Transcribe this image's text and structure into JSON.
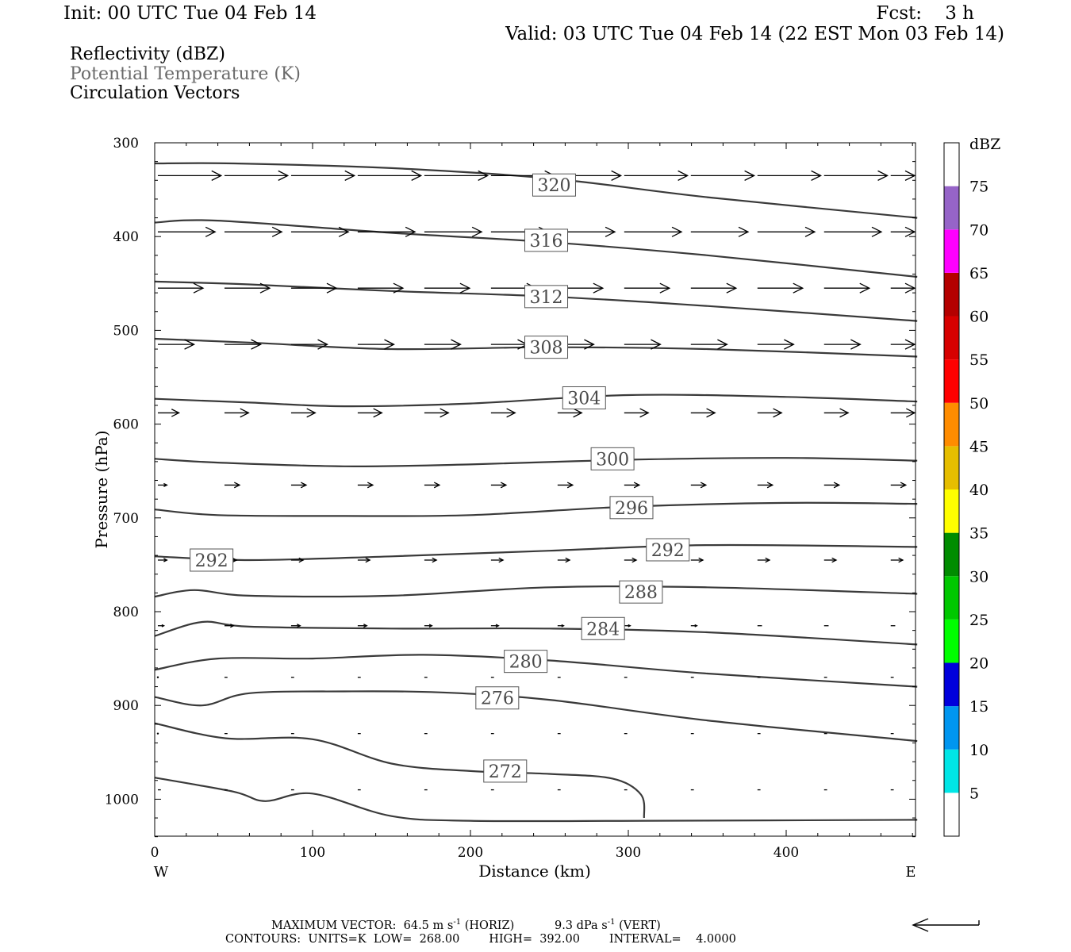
{
  "header": {
    "init": "Init: 00 UTC Tue 04 Feb 14",
    "fcst": "Fcst:    3 h",
    "valid": "Valid: 03 UTC Tue 04 Feb 14 (22 EST Mon 03 Feb 14)",
    "legend_lines": [
      "Reflectivity (dBZ)",
      "Potential Temperature (K)",
      "Circulation Vectors"
    ]
  },
  "colors": {
    "contour": "#3a3a3a",
    "potential_temperature_label": "#6a6a6a",
    "colorbar": [
      "#ffffff",
      "#00e6e6",
      "#0096f0",
      "#0000dc",
      "#00ff00",
      "#00c800",
      "#008c00",
      "#ffff00",
      "#e6be00",
      "#ff8c00",
      "#ff0000",
      "#d70000",
      "#b40000",
      "#ff00ff",
      "#9664c8",
      "#ffffff"
    ]
  },
  "footer": {
    "max_vector_label": "MAXIMUM VECTOR:",
    "max_vector_horiz": "64.5 m s",
    "horiz_tag": "(HORIZ)",
    "max_vector_vert": "9.3 dPa s",
    "vert_tag": "(VERT)",
    "exponent": "-1",
    "contours_line": "CONTOURS:  UNITS=K  LOW=  268.00        HIGH=  392.00        INTERVAL=    4.0000"
  },
  "chart_data": {
    "type": "line",
    "subtype": "vertical cross-section: potential temperature contours with circulation vectors",
    "xlabel": "Distance (km)",
    "ylabel": "Pressure (hPa)",
    "xlim": [
      0,
      483
    ],
    "ylim": [
      300,
      1040
    ],
    "y_inverted": true,
    "xticks": [
      0,
      100,
      200,
      300,
      400
    ],
    "yticks": [
      300,
      400,
      500,
      600,
      700,
      800,
      900,
      1000
    ],
    "x_end_labels": {
      "left": "W",
      "right": "E"
    },
    "grid": false,
    "colorbar": {
      "title": "dBZ",
      "tick_labels": [
        "5",
        "10",
        "15",
        "20",
        "25",
        "30",
        "35",
        "40",
        "45",
        "50",
        "55",
        "60",
        "65",
        "70",
        "75"
      ]
    },
    "contours": [
      {
        "label": "320",
        "label_at": [
          253,
          345
        ],
        "points": [
          [
            0,
            322
          ],
          [
            50,
            322
          ],
          [
            150,
            327
          ],
          [
            250,
            338
          ],
          [
            350,
            358
          ],
          [
            483,
            380
          ]
        ]
      },
      {
        "label": "316",
        "label_at": [
          248,
          404
        ],
        "points": [
          [
            0,
            385
          ],
          [
            40,
            383
          ],
          [
            150,
            396
          ],
          [
            250,
            406
          ],
          [
            350,
            420
          ],
          [
            483,
            443
          ]
        ]
      },
      {
        "label": "312",
        "label_at": [
          248,
          464
        ],
        "points": [
          [
            0,
            448
          ],
          [
            60,
            451
          ],
          [
            150,
            458
          ],
          [
            250,
            464
          ],
          [
            350,
            474
          ],
          [
            483,
            490
          ]
        ]
      },
      {
        "label": "308",
        "label_at": [
          248,
          518
        ],
        "points": [
          [
            0,
            509
          ],
          [
            60,
            513
          ],
          [
            150,
            520
          ],
          [
            250,
            518
          ],
          [
            350,
            520
          ],
          [
            483,
            528
          ]
        ]
      },
      {
        "label": "304",
        "label_at": [
          272,
          572
        ],
        "points": [
          [
            0,
            573
          ],
          [
            60,
            577
          ],
          [
            120,
            581
          ],
          [
            200,
            578
          ],
          [
            300,
            569
          ],
          [
            400,
            571
          ],
          [
            483,
            576
          ]
        ]
      },
      {
        "label": "300",
        "label_at": [
          290,
          637
        ],
        "points": [
          [
            0,
            637
          ],
          [
            40,
            641
          ],
          [
            120,
            645
          ],
          [
            200,
            643
          ],
          [
            300,
            638
          ],
          [
            400,
            636
          ],
          [
            483,
            639
          ]
        ]
      },
      {
        "label": "296",
        "label_at": [
          302,
          689
        ],
        "points": [
          [
            0,
            691
          ],
          [
            40,
            697
          ],
          [
            120,
            698
          ],
          [
            200,
            697
          ],
          [
            300,
            688
          ],
          [
            400,
            684
          ],
          [
            483,
            685
          ]
        ]
      },
      {
        "label": "292",
        "label_at": [
          36,
          745
        ],
        "points": [
          [
            0,
            741
          ],
          [
            60,
            745
          ],
          [
            150,
            741
          ],
          [
            250,
            735
          ],
          [
            350,
            729
          ],
          [
            483,
            731
          ]
        ]
      },
      {
        "label": "292",
        "label_at": [
          325,
          734
        ],
        "points": []
      },
      {
        "label": "288",
        "label_at": [
          308,
          779
        ],
        "points": [
          [
            0,
            784
          ],
          [
            25,
            777
          ],
          [
            60,
            783
          ],
          [
            150,
            783
          ],
          [
            250,
            774
          ],
          [
            350,
            774
          ],
          [
            483,
            781
          ]
        ]
      },
      {
        "label": "284",
        "label_at": [
          284,
          818
        ],
        "points": [
          [
            0,
            826
          ],
          [
            30,
            811
          ],
          [
            60,
            816
          ],
          [
            150,
            818
          ],
          [
            250,
            818
          ],
          [
            350,
            822
          ],
          [
            483,
            835
          ]
        ]
      },
      {
        "label": "280",
        "label_at": [
          235,
          853
        ],
        "points": [
          [
            0,
            862
          ],
          [
            40,
            850
          ],
          [
            100,
            850
          ],
          [
            170,
            846
          ],
          [
            250,
            852
          ],
          [
            350,
            866
          ],
          [
            483,
            880
          ]
        ]
      },
      {
        "label": "276",
        "label_at": [
          217,
          892
        ],
        "points": [
          [
            0,
            891
          ],
          [
            30,
            900
          ],
          [
            60,
            887
          ],
          [
            120,
            885
          ],
          [
            180,
            886
          ],
          [
            250,
            894
          ],
          [
            350,
            916
          ],
          [
            483,
            938
          ]
        ]
      },
      {
        "label": "272",
        "label_at": [
          222,
          970
        ],
        "points": [
          [
            0,
            919
          ],
          [
            45,
            935
          ],
          [
            100,
            936
          ],
          [
            150,
            962
          ],
          [
            200,
            970
          ],
          [
            250,
            973
          ],
          [
            290,
            978
          ],
          [
            308,
            995
          ],
          [
            310,
            1020
          ]
        ]
      },
      {
        "label": "",
        "label_at": null,
        "points": [
          [
            0,
            977
          ],
          [
            50,
            992
          ],
          [
            70,
            1002
          ],
          [
            100,
            994
          ],
          [
            150,
            1018
          ],
          [
            200,
            1023
          ],
          [
            310,
            1023
          ],
          [
            483,
            1022
          ]
        ]
      }
    ],
    "vector_rows": [
      {
        "p": 335,
        "u": [
          42,
          42,
          42,
          42,
          42,
          42,
          42,
          42,
          42,
          42,
          42,
          42,
          42,
          42
        ],
        "w": [
          0,
          0,
          0,
          0,
          0,
          0,
          0,
          0,
          0,
          0,
          0,
          0,
          0,
          0
        ]
      },
      {
        "p": 395,
        "u": [
          38,
          38,
          38,
          38,
          38,
          38,
          38,
          38,
          38,
          38,
          38,
          38,
          38,
          17
        ],
        "w": [
          0,
          0,
          0,
          0,
          0,
          0,
          0,
          0,
          0,
          0,
          0,
          0,
          0,
          0
        ]
      },
      {
        "p": 455,
        "u": [
          30,
          30,
          30,
          30,
          30,
          30,
          30,
          30,
          30,
          30,
          30,
          30,
          30,
          17
        ],
        "w": [
          0,
          0,
          0,
          0,
          0,
          0,
          0,
          0,
          0,
          0,
          0,
          0,
          0,
          0
        ]
      },
      {
        "p": 515,
        "u": [
          24,
          24,
          24,
          24,
          24,
          24,
          24,
          24,
          24,
          24,
          24,
          24,
          24,
          22
        ],
        "w": [
          0,
          0,
          0,
          0,
          0,
          0,
          0,
          0,
          0,
          0,
          0,
          0,
          0,
          0
        ]
      },
      {
        "p": 588,
        "u": [
          14,
          16,
          16,
          16,
          16,
          16,
          16,
          16,
          16,
          16,
          16,
          16,
          16,
          16
        ],
        "w": [
          0,
          0,
          0,
          0,
          0,
          0,
          0,
          0,
          0,
          0,
          0,
          0,
          0,
          0
        ]
      },
      {
        "p": 665,
        "u": [
          6,
          10,
          10,
          10,
          10,
          10,
          10,
          10,
          10,
          10,
          10,
          10,
          10,
          10
        ],
        "w": [
          0,
          0,
          0,
          0,
          0,
          0,
          0,
          0,
          0,
          0,
          0,
          0,
          0,
          0
        ]
      },
      {
        "p": 745,
        "u": [
          6,
          8,
          8,
          8,
          8,
          8,
          8,
          8,
          8,
          8,
          8,
          8,
          8,
          8
        ],
        "w": [
          0,
          0,
          0,
          0,
          0,
          0,
          0,
          0,
          0,
          0,
          0,
          0,
          0,
          0
        ]
      },
      {
        "p": 815,
        "u": [
          4,
          6,
          6,
          6,
          5,
          5,
          4,
          4,
          4,
          3,
          3,
          3,
          3,
          3
        ],
        "w": [
          0,
          0,
          0,
          0,
          0,
          0,
          0,
          0,
          0,
          0,
          0,
          0,
          0,
          0
        ]
      },
      {
        "p": 870,
        "u": [
          0,
          2,
          2,
          2,
          2,
          2,
          2,
          2,
          2,
          2,
          2,
          2,
          2,
          2
        ],
        "w": [
          0,
          0,
          0,
          0,
          0,
          0,
          0,
          0,
          0,
          0,
          0,
          0,
          0,
          0
        ]
      },
      {
        "p": 930,
        "u": [
          0,
          2,
          2,
          2,
          2,
          2,
          2,
          2,
          2,
          2,
          2,
          2,
          2,
          2
        ],
        "w": [
          0,
          0,
          0,
          0,
          0,
          0,
          0,
          0,
          0,
          0,
          0,
          0,
          0,
          0
        ]
      },
      {
        "p": 990,
        "u": [
          2,
          2,
          2,
          2,
          2,
          2,
          2,
          2,
          2,
          2,
          2,
          2,
          2,
          2
        ],
        "w": [
          0,
          0,
          0,
          0,
          0,
          0,
          0,
          0,
          0,
          0,
          0,
          0,
          0,
          0
        ]
      }
    ]
  }
}
